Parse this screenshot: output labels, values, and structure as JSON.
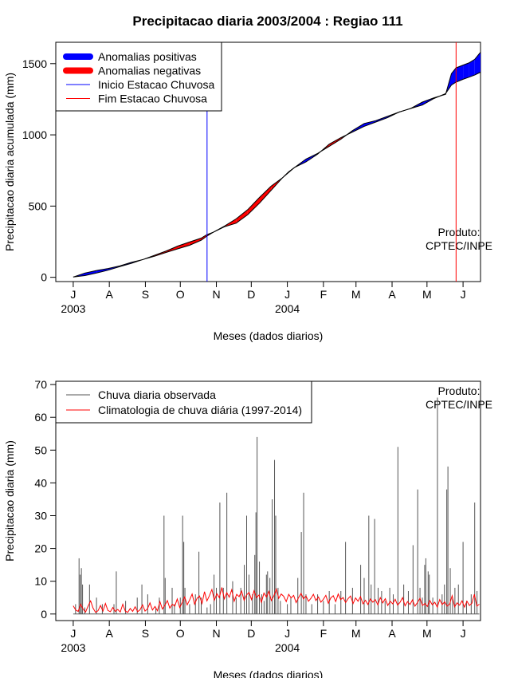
{
  "title": "Precipitacao diaria 2003/2004 : Regiao 111",
  "months": [
    "J",
    "A",
    "S",
    "O",
    "N",
    "D",
    "J",
    "F",
    "M",
    "A",
    "M",
    "J"
  ],
  "year_labels": [
    "2003",
    "2004"
  ],
  "xlabel": "Meses (dados diarios)",
  "product_label": [
    "Produto:",
    "CPTEC/INPE"
  ],
  "chart_data": [
    {
      "type": "area",
      "ylabel": "Precipitacao diaria acumulada (mm)",
      "ylim": [
        -30,
        1650
      ],
      "yticks": [
        0,
        500,
        1000,
        1500
      ],
      "xlim": [
        -15,
        350
      ],
      "legend": {
        "placement": "top-left",
        "entries": [
          {
            "label": "Anomalias positivas",
            "color": "#0000ff",
            "style": "thick"
          },
          {
            "label": "Anomalias negativas",
            "color": "#ff0000",
            "style": "thick"
          },
          {
            "label": "Inicio Estacao Chuvosa",
            "color": "#0000ff",
            "style": "thin"
          },
          {
            "label": "Fim Estacao Chuvosa",
            "color": "#ff0000",
            "style": "thin"
          }
        ]
      },
      "vlines": [
        {
          "name": "inicio-estacao-chuvosa",
          "day": 115,
          "color": "#0000ff"
        },
        {
          "name": "fim-estacao-chuvosa",
          "day": 329,
          "color": "#ff0000"
        }
      ],
      "day": [
        0,
        10,
        20,
        30,
        40,
        50,
        60,
        70,
        80,
        90,
        100,
        110,
        115,
        120,
        130,
        140,
        150,
        160,
        170,
        180,
        185,
        190,
        200,
        210,
        220,
        230,
        240,
        250,
        260,
        270,
        280,
        290,
        300,
        310,
        320,
        325,
        329,
        335,
        340,
        345,
        350
      ],
      "observed": [
        2,
        30,
        48,
        62,
        80,
        105,
        125,
        148,
        175,
        200,
        225,
        260,
        290,
        315,
        355,
        380,
        440,
        520,
        610,
        700,
        735,
        770,
        830,
        870,
        920,
        970,
        1030,
        1080,
        1100,
        1130,
        1160,
        1185,
        1230,
        1260,
        1285,
        1430,
        1470,
        1490,
        1505,
        1530,
        1580
      ],
      "climatology": [
        2,
        12,
        30,
        50,
        75,
        98,
        125,
        155,
        185,
        220,
        248,
        275,
        300,
        315,
        360,
        410,
        475,
        560,
        640,
        700,
        740,
        770,
        810,
        865,
        935,
        980,
        1020,
        1060,
        1090,
        1120,
        1160,
        1185,
        1210,
        1255,
        1290,
        1350,
        1370,
        1390,
        1405,
        1420,
        1440
      ]
    },
    {
      "type": "line",
      "ylabel": "Precipitacao diaria (mm)",
      "ylim": [
        -2,
        71
      ],
      "yticks": [
        0,
        10,
        20,
        30,
        40,
        50,
        60,
        70
      ],
      "xlim": [
        -15,
        350
      ],
      "legend": {
        "placement": "top-left",
        "entries": [
          {
            "label": "Chuva diaria observada",
            "color": "#555555"
          },
          {
            "label": "Climatologia de chuva diária (1997-2014)",
            "color": "#ff0000"
          }
        ]
      },
      "series": [
        {
          "name": "Chuva diaria observada",
          "color": "#555555",
          "spikes": [
            [
              2,
              3
            ],
            [
              5,
              17
            ],
            [
              6,
              12
            ],
            [
              7,
              14
            ],
            [
              8,
              9
            ],
            [
              10,
              2
            ],
            [
              14,
              9
            ],
            [
              20,
              5
            ],
            [
              25,
              3
            ],
            [
              35,
              3
            ],
            [
              37,
              13
            ],
            [
              45,
              4
            ],
            [
              55,
              5
            ],
            [
              59,
              9
            ],
            [
              64,
              6
            ],
            [
              71,
              2
            ],
            [
              74,
              5
            ],
            [
              78,
              30
            ],
            [
              79,
              11
            ],
            [
              85,
              8
            ],
            [
              87,
              3
            ],
            [
              92,
              5
            ],
            [
              94,
              30
            ],
            [
              95,
              22
            ],
            [
              96,
              8
            ],
            [
              100,
              3
            ],
            [
              105,
              6
            ],
            [
              108,
              19
            ],
            [
              110,
              5
            ],
            [
              115,
              2
            ],
            [
              118,
              3
            ],
            [
              121,
              12
            ],
            [
              123,
              8
            ],
            [
              126,
              34
            ],
            [
              129,
              8
            ],
            [
              132,
              37
            ],
            [
              137,
              10
            ],
            [
              140,
              5
            ],
            [
              144,
              8
            ],
            [
              147,
              15
            ],
            [
              149,
              30
            ],
            [
              151,
              12
            ],
            [
              154,
              6
            ],
            [
              156,
              18
            ],
            [
              157,
              31
            ],
            [
              158,
              54
            ],
            [
              160,
              16
            ],
            [
              162,
              6
            ],
            [
              164,
              4
            ],
            [
              166,
              12
            ],
            [
              167,
              13
            ],
            [
              169,
              11
            ],
            [
              171,
              35
            ],
            [
              173,
              47
            ],
            [
              174,
              30
            ],
            [
              176,
              8
            ],
            [
              178,
              4
            ],
            [
              184,
              3
            ],
            [
              187,
              5
            ],
            [
              193,
              11
            ],
            [
              196,
              25
            ],
            [
              198,
              37
            ],
            [
              200,
              6
            ],
            [
              205,
              3
            ],
            [
              210,
              6
            ],
            [
              215,
              4
            ],
            [
              220,
              7
            ],
            [
              225,
              3
            ],
            [
              230,
              7
            ],
            [
              234,
              22
            ],
            [
              240,
              8
            ],
            [
              247,
              15
            ],
            [
              250,
              11
            ],
            [
              254,
              30
            ],
            [
              256,
              9
            ],
            [
              259,
              29
            ],
            [
              262,
              8
            ],
            [
              265,
              7
            ],
            [
              268,
              4
            ],
            [
              272,
              8
            ],
            [
              275,
              6
            ],
            [
              279,
              51
            ],
            [
              284,
              9
            ],
            [
              288,
              7
            ],
            [
              292,
              21
            ],
            [
              296,
              38
            ],
            [
              298,
              8
            ],
            [
              300,
              5
            ],
            [
              302,
              15
            ],
            [
              303,
              17
            ],
            [
              305,
              13
            ],
            [
              306,
              12
            ],
            [
              309,
              5
            ],
            [
              313,
              66
            ],
            [
              317,
              6
            ],
            [
              319,
              9
            ],
            [
              321,
              38
            ],
            [
              322,
              45
            ],
            [
              324,
              14
            ],
            [
              326,
              5
            ],
            [
              328,
              8
            ],
            [
              331,
              9
            ],
            [
              335,
              22
            ],
            [
              338,
              4
            ],
            [
              342,
              6
            ],
            [
              345,
              34
            ],
            [
              347,
              7
            ]
          ]
        },
        {
          "name": "Climatologia de chuva diária (1997-2014)",
          "color": "#ff0000",
          "values": [
            2.5,
            1.2,
            0.8,
            3.0,
            1.5,
            0.6,
            2.4,
            4.0,
            1.8,
            0.5,
            1.0,
            2.6,
            0.9,
            3.2,
            1.1,
            0.7,
            2.0,
            0.8,
            1.4,
            0.6,
            3.0,
            0.9,
            0.5,
            1.7,
            0.8,
            2.2,
            0.7,
            1.3,
            2.8,
            0.9,
            1.6,
            3.4,
            1.2,
            2.3,
            1.0,
            3.8,
            1.5,
            2.7,
            4.1,
            1.8,
            3.0,
            2.4,
            4.6,
            2.0,
            3.5,
            5.2,
            2.8,
            4.3,
            6.1,
            3.0,
            4.8,
            5.5,
            3.2,
            6.8,
            4.0,
            5.6,
            7.5,
            4.2,
            6.2,
            5.0,
            8.1,
            4.6,
            6.5,
            5.1,
            7.4,
            3.9,
            6.0,
            5.3,
            7.0,
            4.2,
            5.8,
            6.6,
            4.4,
            7.1,
            5.0,
            5.8,
            3.6,
            6.4,
            5.2,
            6.9,
            4.1,
            5.5,
            7.6,
            4.8,
            6.1,
            5.4,
            3.8,
            6.0,
            4.9,
            5.7,
            3.5,
            5.0,
            6.3,
            4.6,
            5.5,
            3.9,
            4.8,
            6.0,
            4.1,
            5.2,
            3.6,
            4.5,
            5.7,
            3.3,
            4.9,
            5.6,
            3.8,
            6.1,
            4.4,
            5.0,
            3.5,
            4.7,
            5.5,
            3.2,
            4.9,
            3.9,
            5.3,
            3.1,
            4.2,
            2.9,
            4.6,
            3.6,
            4.4,
            2.8,
            5.0,
            3.4,
            4.7,
            2.6,
            3.9,
            3.1,
            4.5,
            2.7,
            3.6,
            5.0,
            2.5,
            3.8,
            2.9,
            4.3,
            2.4,
            3.5,
            4.8,
            2.6,
            3.2,
            2.3,
            4.1,
            2.8,
            3.6,
            2.1,
            4.4,
            2.9,
            3.7,
            2.4,
            3.0,
            5.6,
            2.2,
            3.4,
            2.7,
            4.0,
            2.1,
            3.9,
            2.6,
            3.3,
            6.0,
            2.4,
            3.0
          ]
        }
      ]
    }
  ]
}
